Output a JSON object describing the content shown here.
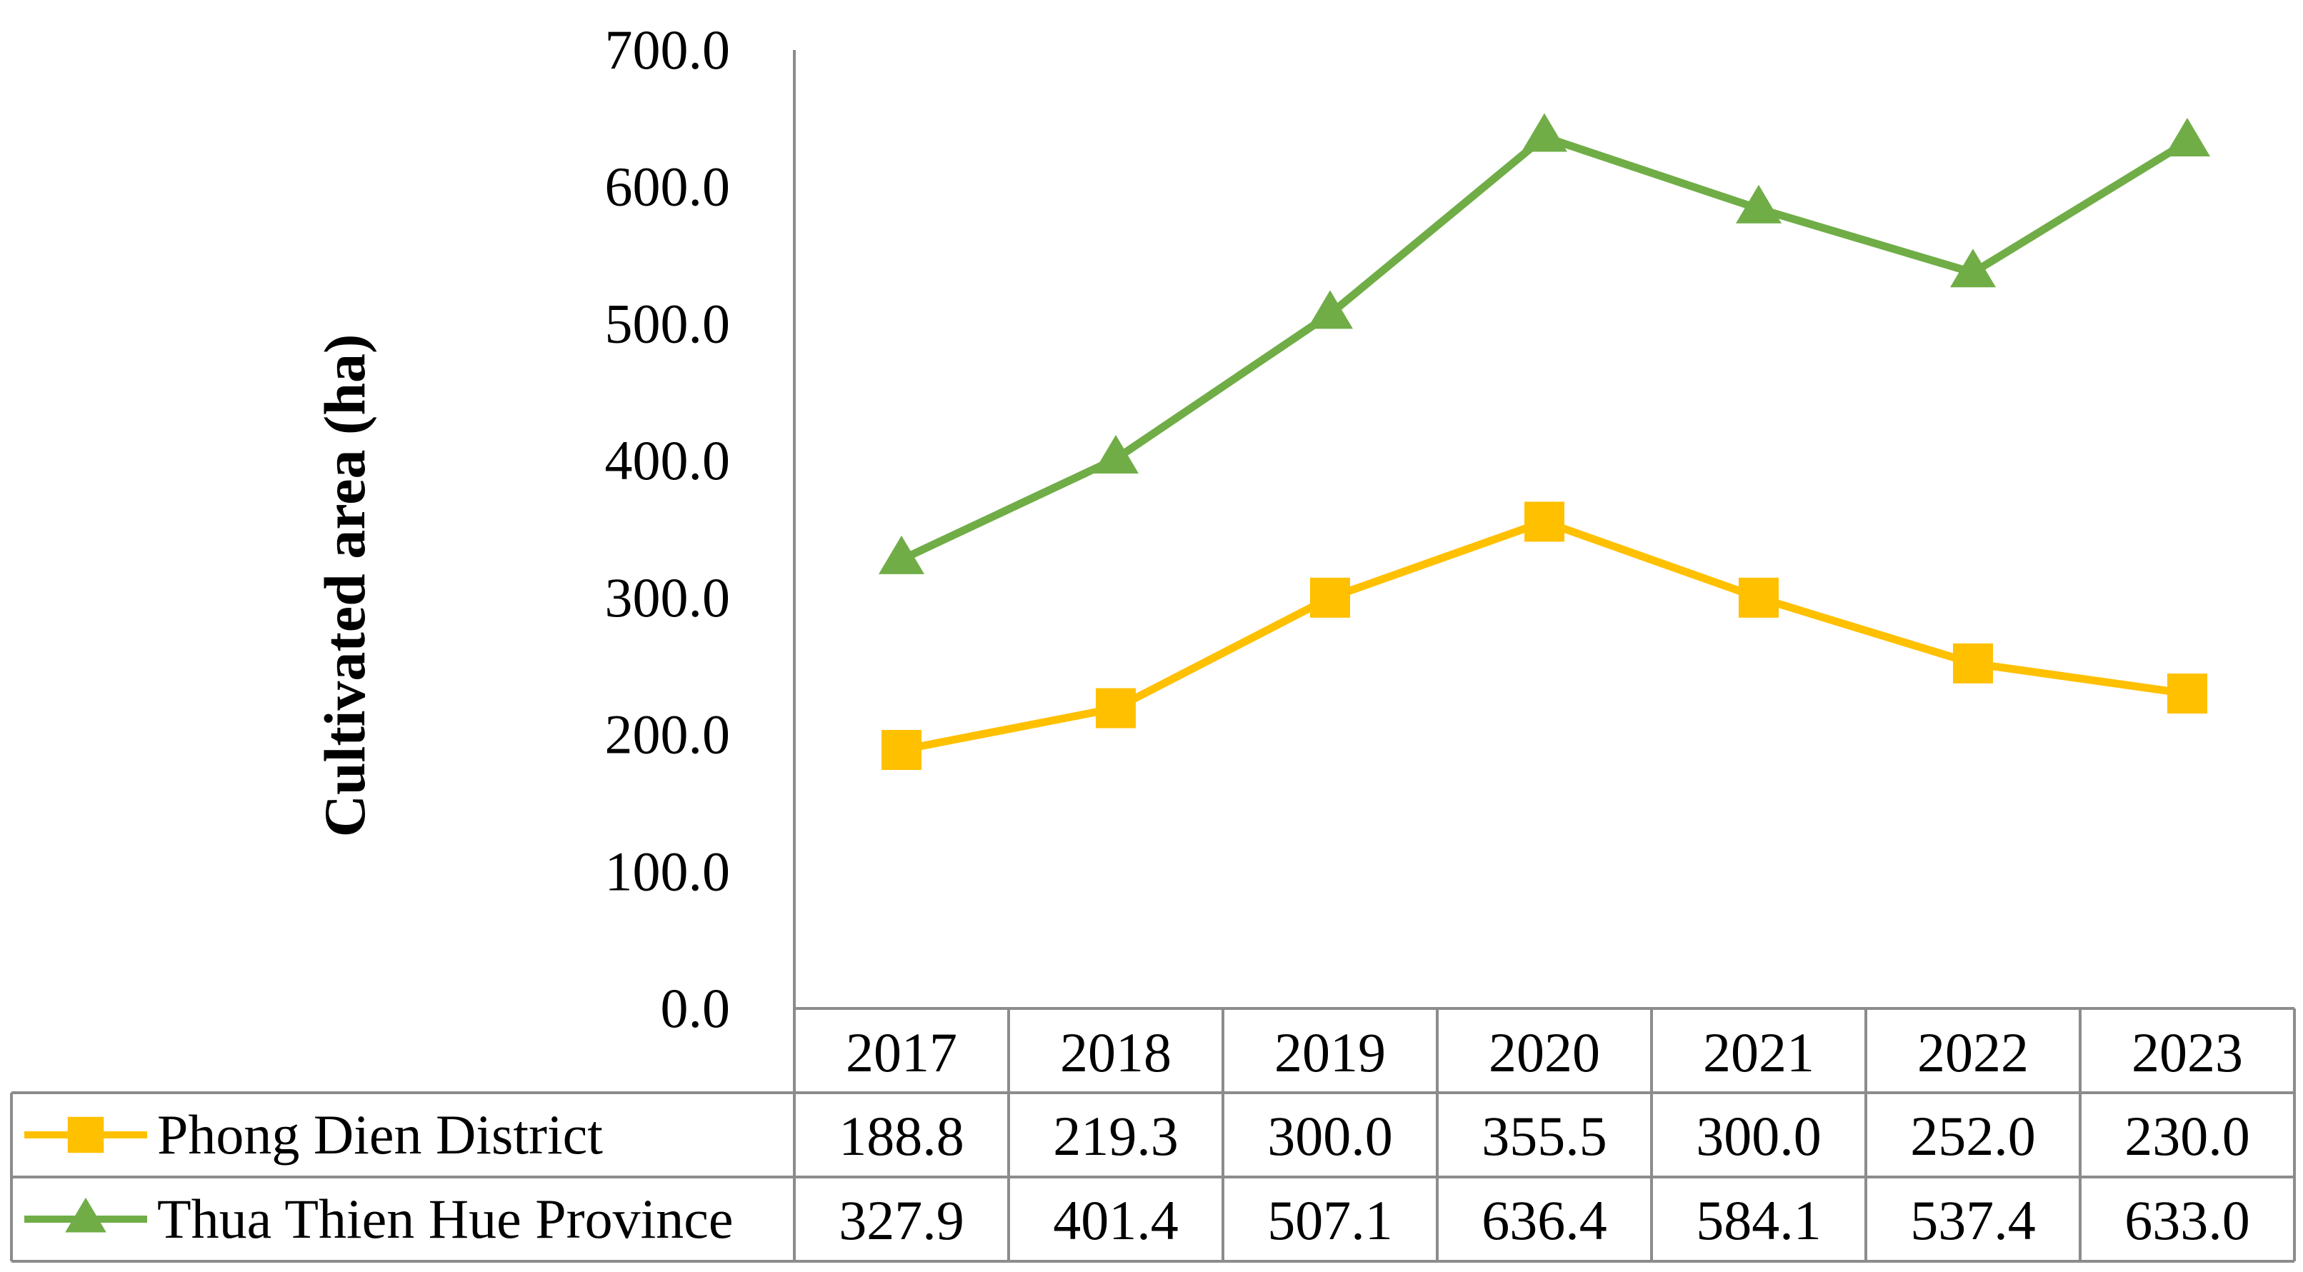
{
  "chart_data": {
    "type": "line",
    "title": "",
    "xlabel": "",
    "ylabel": "Cultivated area (ha)",
    "ylim": [
      0,
      700
    ],
    "yticks": [
      "0.0",
      "100.0",
      "200.0",
      "300.0",
      "400.0",
      "500.0",
      "600.0",
      "700.0"
    ],
    "categories": [
      "2017",
      "2018",
      "2019",
      "2020",
      "2021",
      "2022",
      "2023"
    ],
    "grid": false,
    "legend": "data-table-left",
    "series": [
      {
        "name": "Phong Dien District",
        "marker": "square",
        "color": "#FFC000",
        "values": [
          188.8,
          219.3,
          300.0,
          355.5,
          300.0,
          252.0,
          230.0
        ],
        "labels": [
          "188.8",
          "219.3",
          "300.0",
          "355.5",
          "300.0",
          "252.0",
          "230.0"
        ]
      },
      {
        "name": "Thua Thien Hue Province",
        "marker": "triangle",
        "color": "#70AD47",
        "values": [
          327.9,
          401.4,
          507.1,
          636.4,
          584.1,
          537.4,
          633.0
        ],
        "labels": [
          "327.9",
          "401.4",
          "507.1",
          "636.4",
          "584.1",
          "537.4",
          "633.0"
        ]
      }
    ]
  }
}
